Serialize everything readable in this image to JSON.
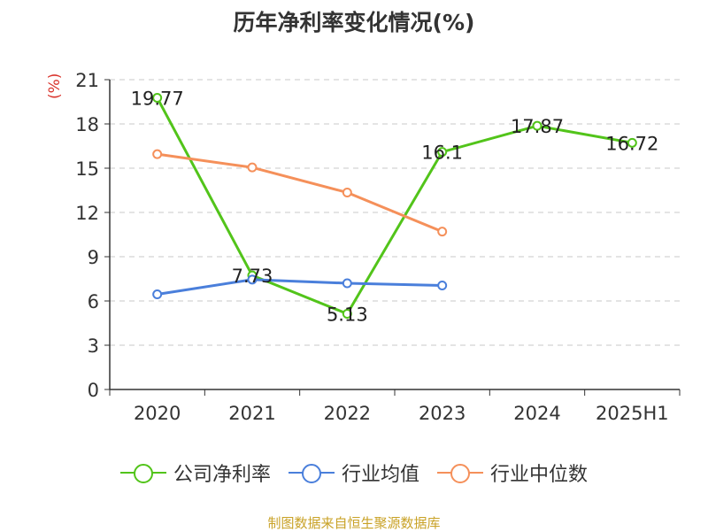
{
  "chart_data": {
    "type": "line",
    "title": "历年净利率变化情况(%)",
    "ylabel": "(%)",
    "xlabel": "",
    "categories": [
      "2020",
      "2021",
      "2022",
      "2023",
      "2024",
      "2025H1"
    ],
    "ylim": [
      0,
      21
    ],
    "yticks": [
      0,
      3,
      6,
      9,
      12,
      15,
      18,
      21
    ],
    "grid": "horizontal dashed",
    "legend_position": "bottom",
    "series": [
      {
        "name": "公司净利率",
        "color": "#52c41a",
        "values": [
          19.77,
          7.73,
          5.13,
          16.1,
          17.87,
          16.72
        ],
        "labels": [
          "19.77",
          "7.73",
          "5.13",
          "16.1",
          "17.87",
          "16.72"
        ]
      },
      {
        "name": "行业均值",
        "color": "#4a7fdb",
        "values": [
          6.45,
          7.45,
          7.2,
          7.05,
          null,
          null
        ]
      },
      {
        "name": "行业中位数",
        "color": "#f5905a",
        "values": [
          15.95,
          15.05,
          13.35,
          10.7,
          null,
          null
        ]
      }
    ]
  },
  "source": "制图数据来自恒生聚源数据库"
}
